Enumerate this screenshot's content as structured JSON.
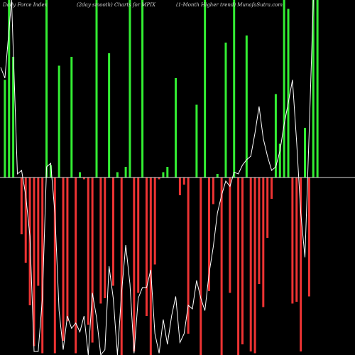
{
  "header": {
    "left": "Daily Force  Index",
    "middle": "(2day smooth) Charts for MPIX",
    "right": "(1-Month Higher trend) MunafaSutra.com"
  },
  "chart_data": {
    "type": "bar",
    "title": "Daily Force  Index",
    "ylim": [
      -100,
      100
    ],
    "zero_line": true,
    "grid": false,
    "colors": {
      "background": "#000000",
      "positive": "#33ee33",
      "negative": "#ee3333",
      "zero_line": "#dddddd",
      "line": "#ffffff"
    },
    "bars": [
      {
        "x": 1,
        "v": 55
      },
      {
        "x": 2,
        "v": 100
      },
      {
        "x": 3,
        "v": 68
      },
      {
        "x": 4,
        "v": 0
      },
      {
        "x": 5,
        "v": -32
      },
      {
        "x": 6,
        "v": -48
      },
      {
        "x": 7,
        "v": -72
      },
      {
        "x": 8,
        "v": -95
      },
      {
        "x": 9,
        "v": -61
      },
      {
        "x": 10,
        "v": -99
      },
      {
        "x": 11,
        "v": 100
      },
      {
        "x": 12,
        "v": 7
      },
      {
        "x": 13,
        "v": -99
      },
      {
        "x": 14,
        "v": 63
      },
      {
        "x": 15,
        "v": -92
      },
      {
        "x": 16,
        "v": -81
      },
      {
        "x": 17,
        "v": 68
      },
      {
        "x": 18,
        "v": -99
      },
      {
        "x": 19,
        "v": 3
      },
      {
        "x": 20,
        "v": -1
      },
      {
        "x": 21,
        "v": -83
      },
      {
        "x": 22,
        "v": -93
      },
      {
        "x": 23,
        "v": 100
      },
      {
        "x": 24,
        "v": -71
      },
      {
        "x": 25,
        "v": -68
      },
      {
        "x": 26,
        "v": 70
      },
      {
        "x": 27,
        "v": -61
      },
      {
        "x": 28,
        "v": 3
      },
      {
        "x": 29,
        "v": -100
      },
      {
        "x": 30,
        "v": 6
      },
      {
        "x": 31,
        "v": 100
      },
      {
        "x": 32,
        "v": -98
      },
      {
        "x": 33,
        "v": -65
      },
      {
        "x": 34,
        "v": 100
      },
      {
        "x": 35,
        "v": -78
      },
      {
        "x": 36,
        "v": -100
      },
      {
        "x": 37,
        "v": -49
      },
      {
        "x": 38,
        "v": -1
      },
      {
        "x": 39,
        "v": 3
      },
      {
        "x": 40,
        "v": 6
      },
      {
        "x": 41,
        "v": 0
      },
      {
        "x": 42,
        "v": 56
      },
      {
        "x": 43,
        "v": -10
      },
      {
        "x": 44,
        "v": -4
      },
      {
        "x": 45,
        "v": -88
      },
      {
        "x": 46,
        "v": 0
      },
      {
        "x": 47,
        "v": 41
      },
      {
        "x": 48,
        "v": -100
      },
      {
        "x": 49,
        "v": 100
      },
      {
        "x": 50,
        "v": -64
      },
      {
        "x": 51,
        "v": -15
      },
      {
        "x": 52,
        "v": 2
      },
      {
        "x": 53,
        "v": -100
      },
      {
        "x": 54,
        "v": 76
      },
      {
        "x": 55,
        "v": -65
      },
      {
        "x": 56,
        "v": 100
      },
      {
        "x": 57,
        "v": -100
      },
      {
        "x": 58,
        "v": -94
      },
      {
        "x": 59,
        "v": 80
      },
      {
        "x": 60,
        "v": -98
      },
      {
        "x": 61,
        "v": -99
      },
      {
        "x": 62,
        "v": -60
      },
      {
        "x": 63,
        "v": -73
      },
      {
        "x": 64,
        "v": -34
      },
      {
        "x": 65,
        "v": -12
      },
      {
        "x": 66,
        "v": 47
      },
      {
        "x": 67,
        "v": 19
      },
      {
        "x": 68,
        "v": 100
      },
      {
        "x": 69,
        "v": 95
      },
      {
        "x": 70,
        "v": -71
      },
      {
        "x": 71,
        "v": -70
      },
      {
        "x": 72,
        "v": -98
      },
      {
        "x": 73,
        "v": 28
      },
      {
        "x": 74,
        "v": -67
      },
      {
        "x": 75,
        "v": 100
      },
      {
        "x": 76,
        "v": 100
      }
    ],
    "line": [
      [
        0,
        62
      ],
      [
        1,
        56
      ],
      [
        2.6,
        100
      ],
      [
        4,
        2
      ],
      [
        5,
        4
      ],
      [
        6,
        -10
      ],
      [
        7,
        -33
      ],
      [
        8,
        -98
      ],
      [
        9,
        -98
      ],
      [
        10,
        -68
      ],
      [
        11,
        6
      ],
      [
        12,
        8
      ],
      [
        13,
        -20
      ],
      [
        14,
        -75
      ],
      [
        15,
        -97
      ],
      [
        16,
        -78
      ],
      [
        17,
        -85
      ],
      [
        18,
        -82
      ],
      [
        19,
        -87
      ],
      [
        20,
        -78
      ],
      [
        21,
        -100
      ],
      [
        22,
        -65
      ],
      [
        23,
        -79
      ],
      [
        24,
        -100
      ],
      [
        25,
        -97
      ],
      [
        26,
        -50
      ],
      [
        27,
        -68
      ],
      [
        28,
        -100
      ],
      [
        29,
        -65
      ],
      [
        30,
        -38
      ],
      [
        31,
        -60
      ],
      [
        32,
        -99
      ],
      [
        33,
        -68
      ],
      [
        34,
        -62
      ],
      [
        35,
        -62
      ],
      [
        36,
        -52
      ],
      [
        37,
        -88
      ],
      [
        38,
        -99
      ],
      [
        39,
        -80
      ],
      [
        40,
        -94
      ],
      [
        41,
        -78
      ],
      [
        42,
        -67
      ],
      [
        43,
        -93
      ],
      [
        44,
        -88
      ],
      [
        45,
        -72
      ],
      [
        46,
        -74
      ],
      [
        47,
        -58
      ],
      [
        48,
        -68
      ],
      [
        49,
        -75
      ],
      [
        50,
        -54
      ],
      [
        51,
        -39
      ],
      [
        52,
        -20
      ],
      [
        53,
        -10
      ],
      [
        54,
        -2
      ],
      [
        55,
        -5
      ],
      [
        56,
        3
      ],
      [
        57,
        2
      ],
      [
        58,
        7
      ],
      [
        59,
        10
      ],
      [
        60,
        12
      ],
      [
        61,
        25
      ],
      [
        62,
        40
      ],
      [
        63,
        22
      ],
      [
        64,
        12
      ],
      [
        65,
        4
      ],
      [
        66,
        6
      ],
      [
        67,
        15
      ],
      [
        68,
        30
      ],
      [
        69,
        42
      ],
      [
        70,
        55
      ],
      [
        71,
        20
      ],
      [
        72,
        -20
      ],
      [
        73,
        -45
      ],
      [
        74,
        25
      ],
      [
        75,
        100
      ],
      [
        76,
        106
      ]
    ]
  }
}
